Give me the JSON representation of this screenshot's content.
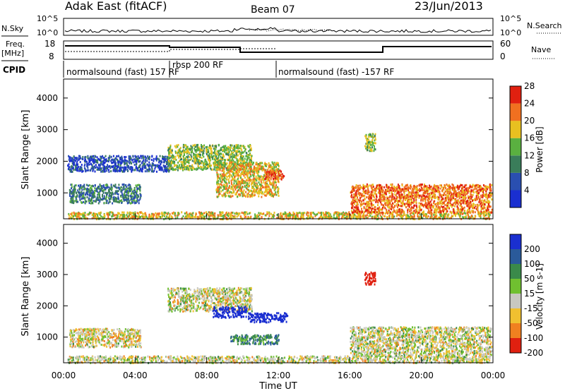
{
  "header": {
    "station": "Adak East (fitACF)",
    "beam": "Beam 07",
    "date": "23/Jun/2013"
  },
  "noise_panel": {
    "left_label": "N.Sky",
    "right_label": "N.Search",
    "left_ticks": [
      "10^5",
      "10^0"
    ],
    "right_ticks": [
      "10^5",
      "10^0"
    ]
  },
  "freq_panel": {
    "left_label_1": "Freq.",
    "left_label_2": "[MHz]",
    "right_label": "Nave",
    "left_ticks": [
      "18",
      "8"
    ],
    "right_ticks": [
      "60",
      "0"
    ]
  },
  "cpid_panel": {
    "label": "CPID",
    "segments": [
      {
        "text": "normalsound (fast) 157 RF"
      },
      {
        "text": "rbsp 200 RF"
      },
      {
        "text": "normalsound (fast) -157 RF"
      }
    ]
  },
  "time_axis": {
    "label": "Time UT",
    "ticks": [
      "00:00",
      "04:00",
      "08:00",
      "12:00",
      "16:00",
      "20:00",
      "00:00"
    ]
  },
  "chart_data": [
    {
      "type": "heatmap",
      "title": "",
      "xlabel": "Time UT",
      "ylabel": "Slant Range [km]",
      "x_range_hours": [
        0,
        24
      ],
      "y_range_km": [
        180,
        4600
      ],
      "y_ticks": [
        1000,
        2000,
        3000,
        4000
      ],
      "colorbar": {
        "label": "Power [dB]",
        "ticks": [
          "4",
          "8",
          "12",
          "16",
          "20",
          "24",
          "28"
        ],
        "colors": [
          "#1a2fd0",
          "#2a4fb0",
          "#3a7d5a",
          "#5ab040",
          "#e8c020",
          "#f07020",
          "#e02010"
        ]
      },
      "echo_regions": [
        {
          "t0": 0.2,
          "t1": 23.8,
          "r0": 200,
          "r1": 420,
          "power": 18
        },
        {
          "t0": 0.2,
          "t1": 6.0,
          "r0": 1700,
          "r1": 2200,
          "power": 5
        },
        {
          "t0": 0.3,
          "t1": 4.3,
          "r0": 700,
          "r1": 1300,
          "power": 9
        },
        {
          "t0": 5.8,
          "t1": 10.5,
          "r0": 1750,
          "r1": 2550,
          "power": 15
        },
        {
          "t0": 8.5,
          "t1": 12.0,
          "r0": 900,
          "r1": 2000,
          "power": 18
        },
        {
          "t0": 11.2,
          "t1": 12.3,
          "r0": 1450,
          "r1": 1750,
          "power": 24
        },
        {
          "t0": 16.0,
          "t1": 23.9,
          "r0": 400,
          "r1": 1300,
          "power": 22
        },
        {
          "t0": 16.8,
          "t1": 17.4,
          "r0": 2350,
          "r1": 2900,
          "power": 15
        }
      ]
    },
    {
      "type": "heatmap",
      "title": "",
      "xlabel": "Time UT",
      "ylabel": "Slant Range [km]",
      "x_range_hours": [
        0,
        24
      ],
      "y_range_km": [
        180,
        4600
      ],
      "y_ticks": [
        1000,
        2000,
        3000,
        4000
      ],
      "colorbar": {
        "label": "Velocity [m s-1]",
        "ticks": [
          "200",
          "100",
          "50",
          "15",
          "-15",
          "-50",
          "-100",
          "-200"
        ],
        "colors": [
          "#1a2fd0",
          "#2a5a9a",
          "#3a8a4a",
          "#70c030",
          "#c8c8c0",
          "#f0c030",
          "#f08020",
          "#e02010"
        ]
      },
      "echo_regions": [
        {
          "t0": 0.2,
          "t1": 23.8,
          "r0": 200,
          "r1": 420,
          "velocity": 0
        },
        {
          "t0": 0.3,
          "t1": 4.3,
          "r0": 700,
          "r1": 1300,
          "velocity": -5
        },
        {
          "t0": 5.8,
          "t1": 10.5,
          "r0": 1850,
          "r1": 2600,
          "velocity": 0
        },
        {
          "t0": 8.3,
          "t1": 10.2,
          "r0": 1650,
          "r1": 2000,
          "velocity": 220
        },
        {
          "t0": 10.3,
          "t1": 12.5,
          "r0": 1500,
          "r1": 1800,
          "velocity": 230
        },
        {
          "t0": 9.3,
          "t1": 12.0,
          "r0": 800,
          "r1": 1100,
          "velocity": 60
        },
        {
          "t0": 16.0,
          "t1": 23.9,
          "r0": 400,
          "r1": 1350,
          "velocity": 0
        },
        {
          "t0": 16.8,
          "t1": 17.4,
          "r0": 2700,
          "r1": 3100,
          "velocity": -220
        }
      ]
    }
  ]
}
